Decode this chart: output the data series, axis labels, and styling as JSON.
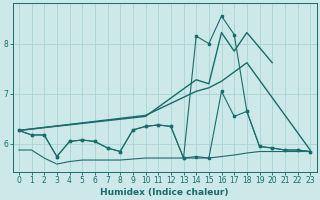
{
  "xlabel": "Humidex (Indice chaleur)",
  "bg_color": "#cce8e8",
  "line_color": "#1a6b6b",
  "grid_color": "#aad4d4",
  "xlim": [
    -0.5,
    23.5
  ],
  "ylim": [
    5.45,
    8.8
  ],
  "yticks": [
    6,
    7,
    8
  ],
  "xticks": [
    0,
    1,
    2,
    3,
    4,
    5,
    6,
    7,
    8,
    9,
    10,
    11,
    12,
    13,
    14,
    15,
    16,
    17,
    18,
    19,
    20,
    21,
    22,
    23
  ],
  "line_zigzag_x": [
    0,
    1,
    2,
    3,
    4,
    5,
    6,
    7,
    8,
    9,
    10,
    11,
    12,
    13,
    14,
    15,
    16,
    17,
    18,
    19,
    20,
    21,
    22,
    23
  ],
  "line_zigzag_y": [
    6.27,
    6.18,
    6.18,
    5.75,
    6.05,
    6.08,
    6.05,
    5.92,
    5.85,
    6.28,
    6.35,
    6.38,
    6.35,
    5.72,
    8.15,
    8.0,
    8.55,
    8.18,
    6.65,
    5.95,
    5.92,
    5.88,
    5.88,
    5.85
  ],
  "line_flat_x": [
    0,
    1,
    2,
    3,
    4,
    5,
    6,
    7,
    8,
    9,
    10,
    11,
    12,
    13,
    14,
    15,
    16,
    17,
    18,
    19,
    20,
    21,
    22,
    23
  ],
  "line_flat_y": [
    6.27,
    6.18,
    6.18,
    5.75,
    6.05,
    6.08,
    6.05,
    5.92,
    5.85,
    6.28,
    6.35,
    6.38,
    6.35,
    5.72,
    5.75,
    5.72,
    7.05,
    6.55,
    6.65,
    5.95,
    5.92,
    5.88,
    5.88,
    5.85
  ],
  "line_diag1_x": [
    0,
    10,
    14,
    15,
    16,
    18,
    23
  ],
  "line_diag1_y": [
    6.27,
    6.57,
    7.05,
    7.12,
    7.25,
    7.62,
    5.88
  ],
  "line_diag2_x": [
    0,
    10,
    14,
    15,
    16,
    17,
    18,
    20
  ],
  "line_diag2_y": [
    6.27,
    6.55,
    7.28,
    7.2,
    8.22,
    7.85,
    8.22,
    7.62
  ],
  "line_bottom_x": [
    0,
    1,
    2,
    3,
    4,
    5,
    6,
    7,
    8,
    9,
    10,
    11,
    12,
    13,
    14,
    15,
    16,
    17,
    18,
    19,
    20,
    21,
    22,
    23
  ],
  "line_bottom_y": [
    5.88,
    5.88,
    5.72,
    5.6,
    5.65,
    5.68,
    5.68,
    5.68,
    5.68,
    5.7,
    5.72,
    5.72,
    5.72,
    5.72,
    5.72,
    5.72,
    5.75,
    5.78,
    5.82,
    5.85,
    5.85,
    5.85,
    5.85,
    5.85
  ]
}
